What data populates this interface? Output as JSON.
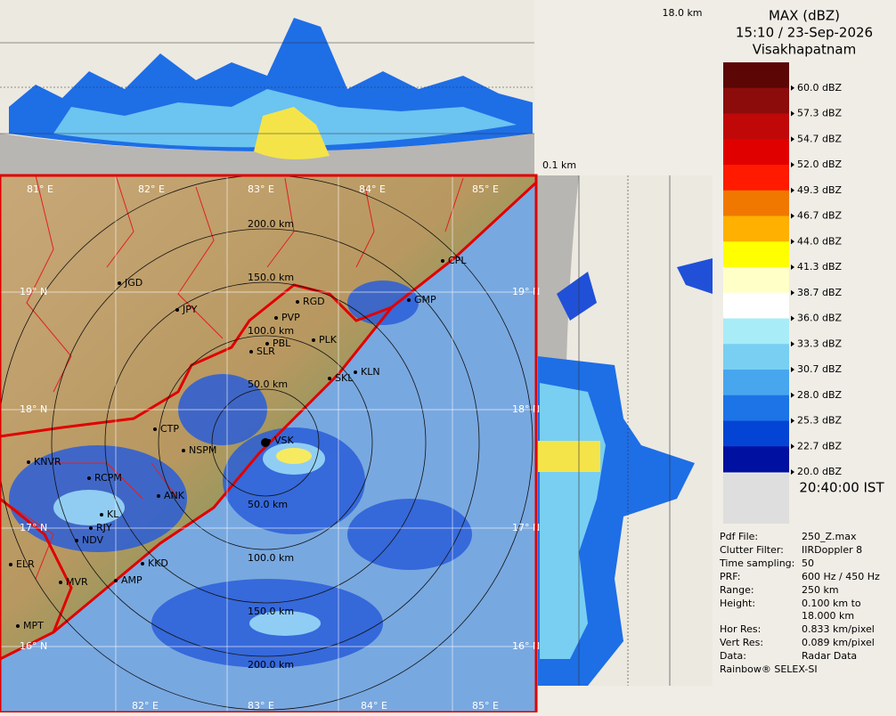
{
  "header": {
    "title": "MAX (dBZ)",
    "time": "15:10 / 23-Sep-2026",
    "station": "Visakhapatnam"
  },
  "panels": {
    "top_height": "18.0 km",
    "side_height": "0.1 km"
  },
  "legend": {
    "labels": [
      "60.0 dBZ",
      "57.3 dBZ",
      "54.7 dBZ",
      "52.0 dBZ",
      "49.3 dBZ",
      "46.7 dBZ",
      "44.0 dBZ",
      "41.3 dBZ",
      "38.7 dBZ",
      "36.0 dBZ",
      "33.3 dBZ",
      "30.7 dBZ",
      "28.0 dBZ",
      "25.3 dBZ",
      "22.7 dBZ",
      "20.0 dBZ"
    ],
    "colors": [
      "#5c0606",
      "#8c0c0c",
      "#c00808",
      "#e00000",
      "#ff1a00",
      "#f07800",
      "#ffb000",
      "#ffff00",
      "#ffffc8",
      "#ffffff",
      "#a8ecf8",
      "#78cff2",
      "#48a6ee",
      "#1c74e6",
      "#0444d4",
      "#0010a0"
    ],
    "time": "20:40:00 IST"
  },
  "info": [
    {
      "label": "Pdf File:",
      "value": "250_Z.max"
    },
    {
      "label": "Clutter Filter:",
      "value": "IIRDoppler 8"
    },
    {
      "label": "Time sampling:",
      "value": "50"
    },
    {
      "label": "PRF:",
      "value": "600 Hz / 450 Hz"
    },
    {
      "label": "Range:",
      "value": "250 km"
    },
    {
      "label": "Height:",
      "value": "0.100 km to"
    },
    {
      "value": "18.000 km"
    },
    {
      "label": "Hor Res:",
      "value": "0.833 km/pixel"
    },
    {
      "label": "Vert Res:",
      "value": "0.089 km/pixel"
    },
    {
      "label": "Data:",
      "value": "Radar Data"
    }
  ],
  "footer": "Rainbow® SELEX-SI",
  "map": {
    "lon_top": [
      "81° E",
      "82° E",
      "83° E",
      "84° E",
      "85° E"
    ],
    "lon_bottom": [
      "82° E",
      "83° E",
      "84° E",
      "85° E"
    ],
    "lat_left": [
      "19° N",
      "18° N",
      "17° N",
      "16° N"
    ],
    "lat_right": [
      "19° N",
      "18° N",
      "17° N",
      "16° N"
    ],
    "ranges": [
      "200.0 km",
      "150.0 km",
      "100.0 km",
      "50.0 km",
      "50.0 km",
      "100.0 km",
      "150.0 km",
      "200.0 km"
    ],
    "cities": [
      "JGD",
      "JPY",
      "RGD",
      "PVP",
      "GMP",
      "CPL",
      "PBL",
      "PLK",
      "SLR",
      "SKL",
      "KLN",
      "CTP",
      "VSK",
      "NSPM",
      "KNVR",
      "RCPM",
      "ANK",
      "KL",
      "RJY",
      "KKD",
      "ELR",
      "NDV",
      "MVR",
      "AMP",
      "MPT"
    ]
  }
}
